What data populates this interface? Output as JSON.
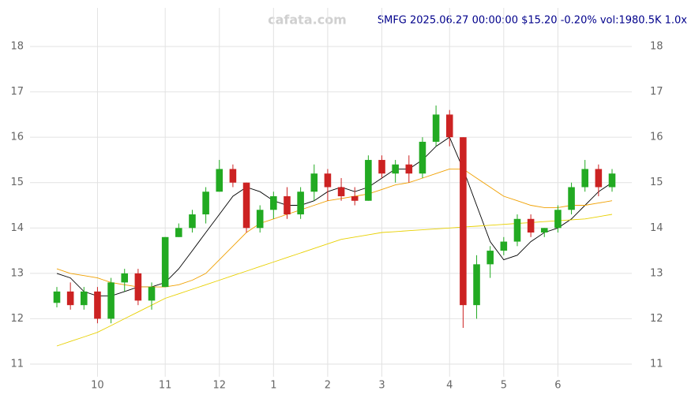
{
  "chart_data": {
    "type": "candlestick",
    "title": "SMFG 2025.06.27 00:00:00 $15.20 -0.20% vol:1980.5K 1.0x",
    "watermark": "cafata.com",
    "categories": [
      null,
      null,
      null,
      "10",
      null,
      null,
      null,
      null,
      "11",
      null,
      null,
      null,
      "12",
      null,
      null,
      null,
      "1",
      null,
      null,
      null,
      "2",
      null,
      null,
      null,
      "3",
      null,
      null,
      null,
      null,
      "4",
      null,
      null,
      null,
      "5",
      null,
      null,
      null,
      "6",
      null,
      null,
      null,
      null
    ],
    "open": [
      12.35,
      12.6,
      12.3,
      12.6,
      12.0,
      12.8,
      13.0,
      12.4,
      12.7,
      13.8,
      14.0,
      14.3,
      14.8,
      15.3,
      15.0,
      14.0,
      14.4,
      14.7,
      14.3,
      14.8,
      15.2,
      14.9,
      14.7,
      14.6,
      15.5,
      15.2,
      15.4,
      15.2,
      15.9,
      16.5,
      16.0,
      12.3,
      13.2,
      13.5,
      13.7,
      14.2,
      13.9,
      14.0,
      14.4,
      14.9,
      15.3,
      14.9
    ],
    "high": [
      12.7,
      12.8,
      12.7,
      12.7,
      12.9,
      13.1,
      13.1,
      12.8,
      13.8,
      14.1,
      14.4,
      14.9,
      15.5,
      15.4,
      15.0,
      14.5,
      14.8,
      14.9,
      14.9,
      15.4,
      15.3,
      15.1,
      14.9,
      15.6,
      15.6,
      15.5,
      15.6,
      16.0,
      16.7,
      16.6,
      16.0,
      13.4,
      13.6,
      13.8,
      14.3,
      14.3,
      14.0,
      14.5,
      15.0,
      15.5,
      15.4,
      15.3
    ],
    "low": [
      12.25,
      12.2,
      12.2,
      11.9,
      11.9,
      12.6,
      12.3,
      12.2,
      12.7,
      13.8,
      13.9,
      14.1,
      14.8,
      14.9,
      13.9,
      13.9,
      14.2,
      14.2,
      14.2,
      14.6,
      14.6,
      14.6,
      14.5,
      14.6,
      15.1,
      15.0,
      15.0,
      15.1,
      15.8,
      15.8,
      11.8,
      12.0,
      12.9,
      13.4,
      13.6,
      13.8,
      13.8,
      13.9,
      14.3,
      14.8,
      14.7,
      14.8
    ],
    "close": [
      12.6,
      12.3,
      12.6,
      12.0,
      12.8,
      13.0,
      12.4,
      12.7,
      13.8,
      14.0,
      14.3,
      14.8,
      15.3,
      15.0,
      14.0,
      14.4,
      14.7,
      14.3,
      14.8,
      15.2,
      14.9,
      14.7,
      14.6,
      15.5,
      15.2,
      15.4,
      15.2,
      15.9,
      16.5,
      16.0,
      12.3,
      13.2,
      13.5,
      13.7,
      14.2,
      13.9,
      14.0,
      14.4,
      14.9,
      15.3,
      14.9,
      15.2
    ],
    "up_color": "#22aa22",
    "down_color": "#cc2222",
    "lines": [
      {
        "color": "#000000",
        "values": [
          13.0,
          12.9,
          12.6,
          12.5,
          12.5,
          12.6,
          12.7,
          12.7,
          12.8,
          13.1,
          13.5,
          13.9,
          14.3,
          14.7,
          14.9,
          14.8,
          14.6,
          14.5,
          14.5,
          14.6,
          14.8,
          14.9,
          14.8,
          14.9,
          15.1,
          15.3,
          15.3,
          15.5,
          15.8,
          16.0,
          15.3,
          14.5,
          13.7,
          13.3,
          13.4,
          13.7,
          13.9,
          14.0,
          14.2,
          14.5,
          14.8,
          15.0
        ]
      },
      {
        "color": "#f0a000",
        "values": [
          13.1,
          13.0,
          12.95,
          12.9,
          12.8,
          12.75,
          12.7,
          12.7,
          12.7,
          12.75,
          12.85,
          13.0,
          13.3,
          13.6,
          13.9,
          14.1,
          14.2,
          14.3,
          14.4,
          14.5,
          14.6,
          14.65,
          14.7,
          14.75,
          14.85,
          14.95,
          15.0,
          15.1,
          15.2,
          15.3,
          15.3,
          15.1,
          14.9,
          14.7,
          14.6,
          14.5,
          14.45,
          14.45,
          14.5,
          14.5,
          14.55,
          14.6
        ]
      },
      {
        "color": "#e8d000",
        "values": [
          11.4,
          11.5,
          11.6,
          11.7,
          11.85,
          12.0,
          12.15,
          12.3,
          12.45,
          12.55,
          12.65,
          12.75,
          12.85,
          12.95,
          13.05,
          13.15,
          13.25,
          13.35,
          13.45,
          13.55,
          13.65,
          13.75,
          13.8,
          13.85,
          13.9,
          13.92,
          13.94,
          13.96,
          13.98,
          14.0,
          14.02,
          14.04,
          14.06,
          14.08,
          14.1,
          14.12,
          14.14,
          14.16,
          14.18,
          14.2,
          14.25,
          14.3
        ]
      }
    ],
    "ylim": [
      11,
      18
    ],
    "yticks": [
      11,
      12,
      13,
      14,
      15,
      16,
      17,
      18
    ],
    "grid": true
  }
}
